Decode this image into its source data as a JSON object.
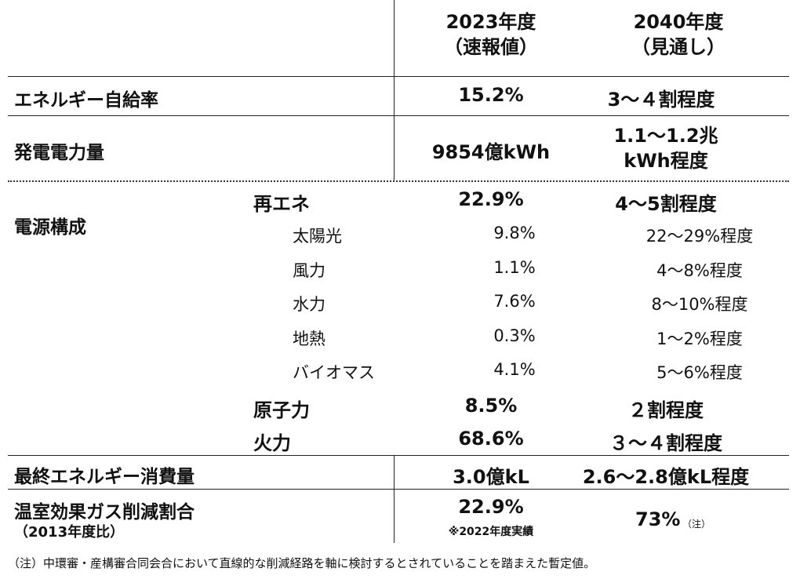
{
  "header": {
    "col1_line1": "2023年度",
    "col1_line2": "（速報値）",
    "col2_line1": "2040年度",
    "col2_line2": "（見通し）"
  },
  "rows": {
    "self_sufficiency": {
      "label": "エネルギー自給率",
      "v2023": "15.2%",
      "v2040": "3～４割程度"
    },
    "generation": {
      "label": "発電電力量",
      "v2023": "9854億kWh",
      "v2040_line1": "1.1～1.2兆",
      "v2040_line2": "kWh程度"
    },
    "power_mix": {
      "label": "電源構成",
      "renewable": {
        "label": "再エネ",
        "v2023": "22.9%",
        "v2040": "4～5割程度"
      },
      "solar": {
        "label": "太陽光",
        "v2023": "9.8%",
        "v2040": "22～29%程度"
      },
      "wind": {
        "label": "風力",
        "v2023": "1.1%",
        "v2040": "4～8%程度"
      },
      "hydro": {
        "label": "水力",
        "v2023": "7.6%",
        "v2040": "8～10%程度"
      },
      "geothermal": {
        "label": "地熱",
        "v2023": "0.3%",
        "v2040": "1～2%程度"
      },
      "biomass": {
        "label": "バイオマス",
        "v2023": "4.1%",
        "v2040": "5～6%程度"
      },
      "nuclear": {
        "label": "原子力",
        "v2023": "8.5%",
        "v2040": "２割程度"
      },
      "thermal": {
        "label": "火力",
        "v2023": "68.6%",
        "v2040": "３～４割程度"
      }
    },
    "final_consumption": {
      "label": "最終エネルギー消費量",
      "v2023": "3.0億kL",
      "v2040": "2.6～2.8億kL程度"
    },
    "ghg": {
      "label": "温室効果ガス削減割合",
      "sublabel": "（2013年度比）",
      "v2023": "22.9%",
      "v2023_note": "※2022年度実績",
      "v2040": "73%",
      "v2040_note": "（注）"
    }
  },
  "footnote": "（注）中環審・産構審合同会合において直線的な削減経路を軸に検討するとされていることを踏まえた暫定値。"
}
